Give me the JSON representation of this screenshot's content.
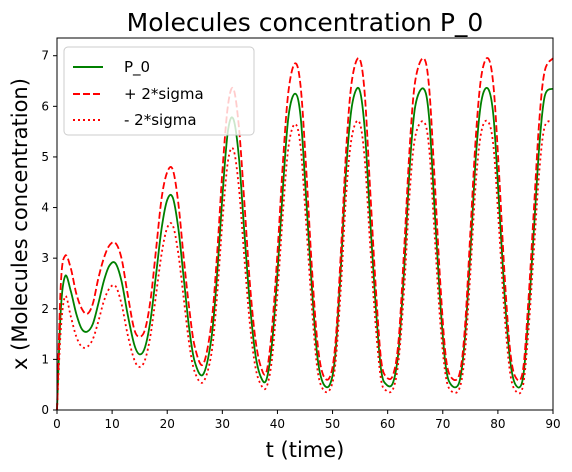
{
  "chart_data": {
    "type": "line",
    "title": "Molecules concentration P_0",
    "xlabel": "t (time)",
    "ylabel": "x (Molecules concentration)",
    "xlim": [
      0,
      90
    ],
    "ylim": [
      0,
      7.35
    ],
    "xticks": [
      "0",
      "10",
      "20",
      "30",
      "40",
      "50",
      "60",
      "70",
      "80",
      "90"
    ],
    "yticks": [
      "0",
      "1",
      "2",
      "3",
      "4",
      "5",
      "6",
      "7"
    ],
    "grid": false,
    "legend_position": "upper-left",
    "series": [
      {
        "name": "P_0",
        "color": "#008000",
        "dash": "solid",
        "x": [
          0,
          0.7,
          1.5,
          2.5,
          3.5,
          4.5,
          5.5,
          6.5,
          7.5,
          8.5,
          9.5,
          10.6,
          11.7,
          12.8,
          14.0,
          15.0,
          16.0,
          17.0,
          18.0,
          19.0,
          20.0,
          21.0,
          22.0,
          23.0,
          24.0,
          25.0,
          26.5,
          28.0,
          29.0,
          30.0,
          31.0,
          32.0,
          33.0,
          34.0,
          35.0,
          36.0,
          37.0,
          38.0,
          39.0,
          40.0,
          41.0,
          42.0,
          43.2,
          44.2,
          45.2,
          46.2,
          47.2,
          48.2,
          49.5,
          50.5,
          51.5,
          52.5,
          53.5,
          54.8,
          55.8,
          56.8,
          57.8,
          58.8,
          59.8,
          61.0,
          62.0,
          63.0,
          64.0,
          65.0,
          66.5,
          67.5,
          68.5,
          69.5,
          70.5,
          71.5,
          73.0,
          74.0,
          75.0,
          76.0,
          77.0,
          78.2,
          79.2,
          80.2,
          81.2,
          82.2,
          83.2,
          84.5,
          85.5,
          86.5,
          87.5,
          88.5,
          90.0
        ],
        "y": [
          0,
          2.0,
          2.65,
          2.35,
          1.9,
          1.6,
          1.55,
          1.7,
          2.1,
          2.55,
          2.85,
          2.9,
          2.55,
          1.9,
          1.3,
          1.1,
          1.25,
          1.8,
          2.7,
          3.6,
          4.15,
          4.2,
          3.6,
          2.6,
          1.6,
          0.95,
          0.7,
          1.4,
          2.6,
          4.2,
          5.5,
          5.75,
          5.0,
          3.5,
          2.1,
          1.1,
          0.65,
          0.6,
          1.3,
          2.7,
          4.4,
          5.8,
          6.25,
          5.8,
          4.2,
          2.5,
          1.1,
          0.55,
          0.5,
          1.1,
          2.8,
          4.8,
          6.0,
          6.35,
          5.6,
          3.8,
          2.1,
          0.8,
          0.5,
          0.55,
          1.2,
          2.8,
          4.8,
          6.0,
          6.35,
          5.8,
          4.0,
          2.2,
          0.9,
          0.5,
          0.55,
          1.4,
          3.1,
          5.0,
          6.1,
          6.35,
          5.8,
          4.1,
          2.3,
          1.0,
          0.5,
          0.6,
          1.8,
          3.5,
          5.2,
          6.2,
          6.35
        ]
      },
      {
        "name": "+ 2*sigma",
        "color": "#ff0000",
        "dash": "dashed",
        "x": [
          0,
          0.7,
          1.5,
          2.5,
          3.5,
          4.5,
          5.5,
          6.5,
          7.5,
          8.5,
          9.5,
          10.6,
          11.7,
          12.8,
          14.0,
          15.0,
          16.0,
          17.0,
          18.0,
          19.0,
          20.0,
          21.0,
          22.0,
          23.0,
          24.0,
          25.0,
          26.5,
          28.0,
          29.0,
          30.0,
          31.0,
          32.0,
          33.0,
          34.0,
          35.0,
          36.0,
          37.0,
          38.0,
          39.0,
          40.0,
          41.0,
          42.0,
          43.2,
          44.2,
          45.2,
          46.2,
          47.2,
          48.2,
          49.5,
          50.5,
          51.5,
          52.5,
          53.5,
          54.8,
          55.8,
          56.8,
          57.8,
          58.8,
          59.8,
          61.0,
          62.0,
          63.0,
          64.0,
          65.0,
          66.5,
          67.5,
          68.5,
          69.5,
          70.5,
          71.5,
          73.0,
          74.0,
          75.0,
          76.0,
          77.0,
          78.2,
          79.2,
          80.2,
          81.2,
          82.2,
          83.2,
          84.5,
          85.5,
          86.5,
          87.5,
          88.5,
          90.0
        ],
        "y": [
          0,
          2.5,
          3.05,
          2.8,
          2.3,
          2.0,
          1.9,
          2.1,
          2.6,
          3.0,
          3.25,
          3.3,
          3.0,
          2.3,
          1.6,
          1.45,
          1.6,
          2.2,
          3.2,
          4.2,
          4.7,
          4.75,
          4.1,
          3.0,
          2.0,
          1.25,
          0.9,
          1.7,
          3.0,
          4.7,
          6.0,
          6.35,
          5.6,
          4.1,
          2.5,
          1.4,
          0.85,
          0.75,
          1.6,
          3.1,
          4.9,
          6.3,
          6.85,
          6.4,
          4.8,
          2.9,
          1.4,
          0.72,
          0.65,
          1.3,
          3.1,
          5.2,
          6.5,
          6.95,
          6.3,
          4.4,
          2.5,
          1.0,
          0.65,
          0.7,
          1.4,
          3.2,
          5.2,
          6.5,
          6.95,
          6.4,
          4.6,
          2.6,
          1.1,
          0.65,
          0.7,
          1.6,
          3.5,
          5.4,
          6.6,
          6.95,
          6.4,
          4.7,
          2.7,
          1.2,
          0.65,
          0.75,
          2.1,
          3.9,
          5.7,
          6.7,
          6.95
        ]
      },
      {
        "name": "- 2*sigma",
        "color": "#ff0000",
        "dash": "dotted",
        "x": [
          0,
          0.7,
          1.5,
          2.5,
          3.5,
          4.5,
          5.5,
          6.5,
          7.5,
          8.5,
          9.5,
          10.6,
          11.7,
          12.8,
          14.0,
          15.0,
          16.0,
          17.0,
          18.0,
          19.0,
          20.0,
          21.0,
          22.0,
          23.0,
          24.0,
          25.0,
          26.5,
          28.0,
          29.0,
          30.0,
          31.0,
          32.0,
          33.0,
          34.0,
          35.0,
          36.0,
          37.0,
          38.0,
          39.0,
          40.0,
          41.0,
          42.0,
          43.2,
          44.2,
          45.2,
          46.2,
          47.2,
          48.2,
          49.5,
          50.5,
          51.5,
          52.5,
          53.5,
          54.8,
          55.8,
          56.8,
          57.8,
          58.8,
          59.8,
          61.0,
          62.0,
          63.0,
          64.0,
          65.0,
          66.5,
          67.5,
          68.5,
          69.5,
          70.5,
          71.5,
          73.0,
          74.0,
          75.0,
          76.0,
          77.0,
          78.2,
          79.2,
          80.2,
          81.2,
          82.2,
          83.2,
          84.5,
          85.5,
          86.5,
          87.5,
          88.5,
          90.0
        ],
        "y": [
          0,
          1.6,
          2.25,
          1.85,
          1.45,
          1.25,
          1.25,
          1.4,
          1.75,
          2.15,
          2.4,
          2.45,
          2.1,
          1.5,
          1.0,
          0.85,
          1.0,
          1.5,
          2.3,
          3.1,
          3.6,
          3.65,
          3.1,
          2.2,
          1.3,
          0.75,
          0.55,
          1.1,
          2.2,
          3.7,
          4.9,
          5.15,
          4.4,
          3.0,
          1.7,
          0.85,
          0.5,
          0.45,
          1.0,
          2.3,
          3.9,
          5.2,
          5.65,
          5.2,
          3.7,
          2.1,
          0.85,
          0.42,
          0.4,
          0.9,
          2.4,
          4.3,
          5.4,
          5.7,
          5.0,
          3.3,
          1.7,
          0.6,
          0.38,
          0.42,
          1.0,
          2.4,
          4.3,
          5.4,
          5.7,
          5.2,
          3.5,
          1.8,
          0.7,
          0.38,
          0.42,
          1.1,
          2.7,
          4.5,
          5.5,
          5.7,
          5.2,
          3.6,
          1.9,
          0.75,
          0.38,
          0.45,
          1.5,
          3.1,
          4.7,
          5.6,
          5.7
        ]
      }
    ]
  }
}
